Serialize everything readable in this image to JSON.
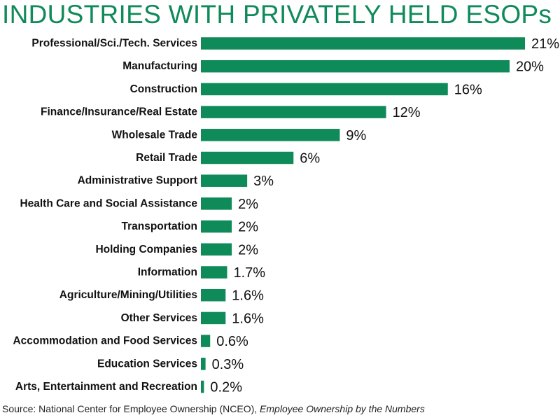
{
  "colors": {
    "bar": "#0f8a59",
    "title": "#0f8a59",
    "text": "#111111"
  },
  "chart_data": {
    "type": "bar",
    "orientation": "horizontal",
    "title": "INDUSTRIES WITH PRIVATELY HELD ESOPs",
    "categories": [
      "Professional/Sci./Tech. Services",
      "Manufacturing",
      "Construction",
      "Finance/Insurance/Real Estate",
      "Wholesale Trade",
      "Retail Trade",
      "Administrative Support",
      "Health Care and Social Assistance",
      "Transportation",
      "Holding Companies",
      "Information",
      "Agriculture/Mining/Utilities",
      "Other Services",
      "Accommodation and Food Services",
      "Education Services",
      "Arts, Entertainment and Recreation"
    ],
    "values": [
      21,
      20,
      16,
      12,
      9,
      6,
      3,
      2,
      2,
      2,
      1.7,
      1.6,
      1.6,
      0.6,
      0.3,
      0.2
    ],
    "value_labels": [
      "21%",
      "20%",
      "16%",
      "12%",
      "9%",
      "6%",
      "3%",
      "2%",
      "2%",
      "2%",
      "1.7%",
      "1.6%",
      "1.6%",
      "0.6%",
      "0.3%",
      "0.2%"
    ],
    "xlabel": "",
    "ylabel": "",
    "xlim": [
      0,
      21
    ],
    "grid": false,
    "legend": "none"
  },
  "source": {
    "prefix": "Source: National Center for Employee Ownership (NCEO), ",
    "publication": "Employee Ownership by the Numbers"
  }
}
